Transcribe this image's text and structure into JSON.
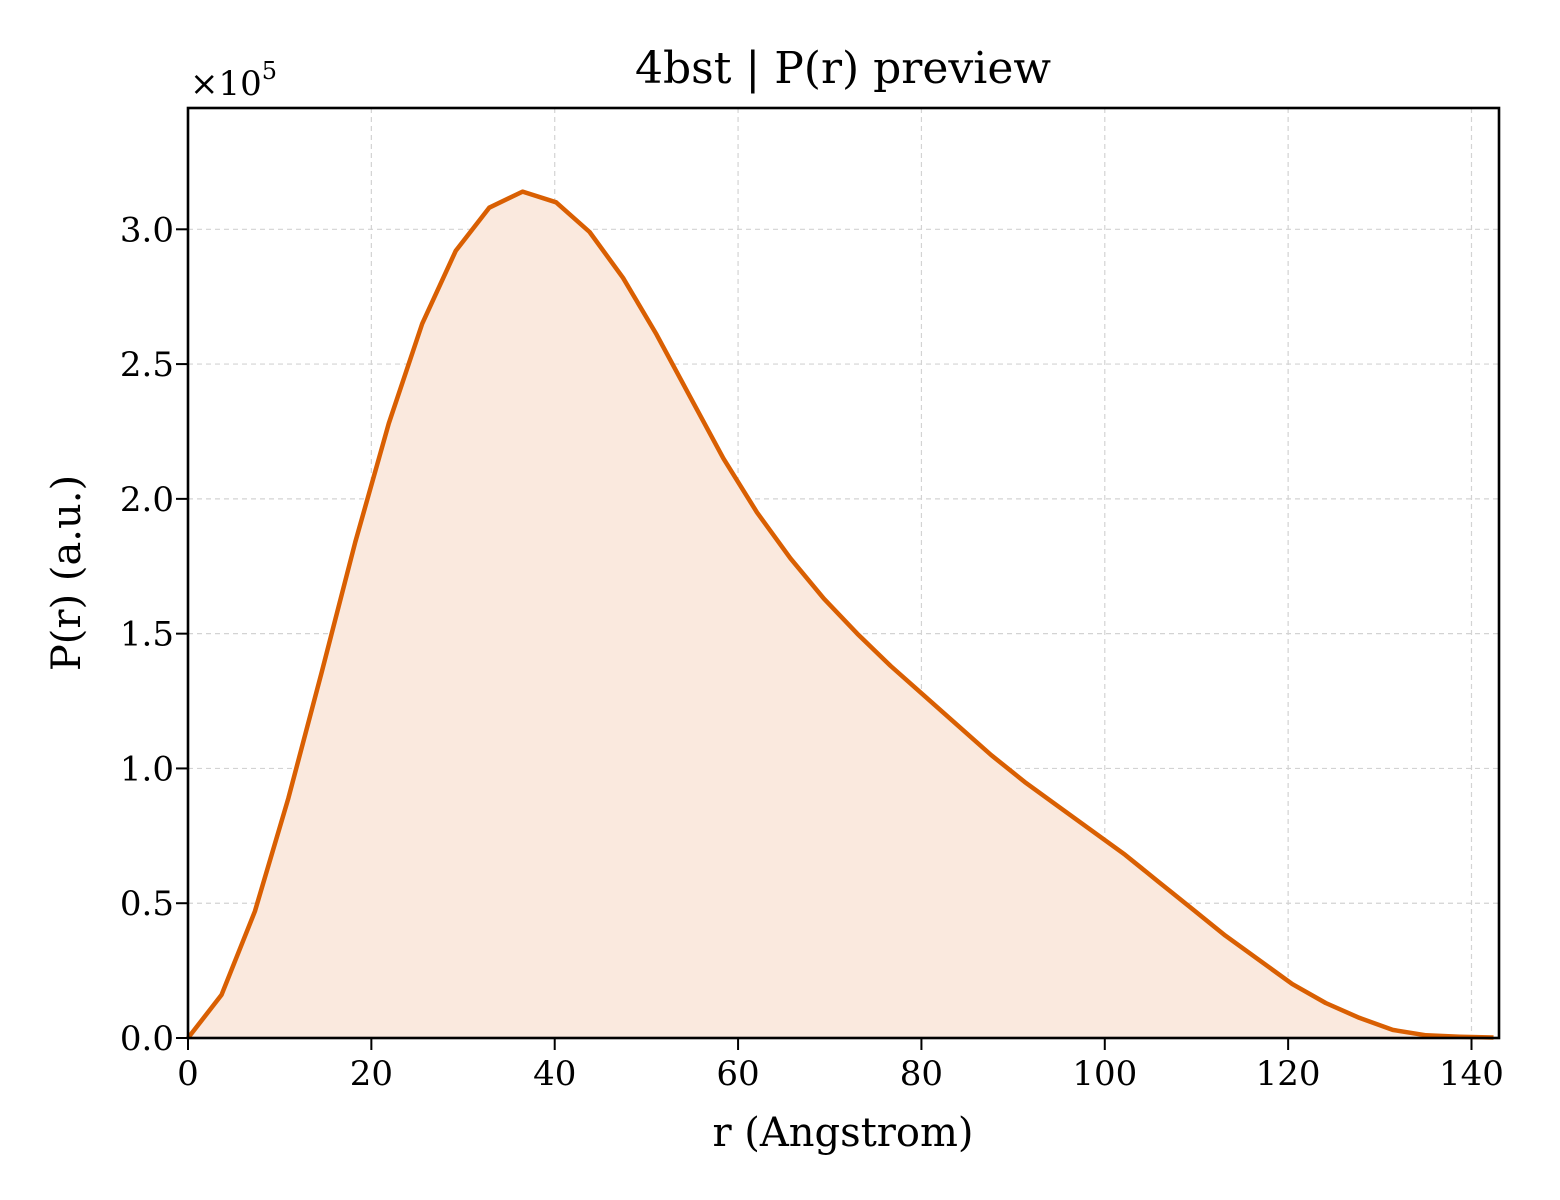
{
  "chart_data": {
    "type": "area",
    "title": "4bst | P(r) preview",
    "xlabel": "r (Angstrom)",
    "ylabel": "P(r) (a.u.)",
    "y_scale_label": "×10",
    "y_scale_exponent": "5",
    "xlim": [
      0,
      143
    ],
    "ylim": [
      0,
      3.45
    ],
    "grid": true,
    "x_ticks": [
      0,
      20,
      40,
      60,
      80,
      100,
      120,
      140
    ],
    "x_tick_labels": [
      "0",
      "20",
      "40",
      "60",
      "80",
      "100",
      "120",
      "140"
    ],
    "y_ticks": [
      0,
      0.5,
      1.0,
      1.5,
      2.0,
      2.5,
      3.0
    ],
    "y_tick_labels": [
      "0.0",
      "0.5",
      "1.0",
      "1.5",
      "2.0",
      "2.5",
      "3.0"
    ],
    "series": [
      {
        "color": "#d95f02",
        "fill_color": "#fae9de",
        "x": [
          0,
          3.65,
          7.3,
          10.95,
          14.6,
          18.25,
          21.9,
          25.55,
          29.2,
          32.85,
          36.5,
          40.15,
          43.8,
          47.45,
          51.1,
          54.75,
          58.4,
          62.05,
          65.7,
          69.35,
          73.0,
          76.65,
          80.3,
          83.95,
          87.6,
          91.25,
          94.9,
          98.55,
          102.2,
          105.85,
          109.5,
          113.15,
          116.8,
          120.45,
          124.1,
          127.75,
          131.4,
          135.05,
          138.7,
          142.4
        ],
        "y": [
          0,
          0.16,
          0.47,
          0.89,
          1.36,
          1.84,
          2.28,
          2.65,
          2.92,
          3.08,
          3.14,
          3.1,
          2.99,
          2.82,
          2.61,
          2.38,
          2.15,
          1.95,
          1.78,
          1.63,
          1.5,
          1.38,
          1.27,
          1.16,
          1.05,
          0.95,
          0.86,
          0.77,
          0.68,
          0.58,
          0.48,
          0.38,
          0.29,
          0.2,
          0.13,
          0.075,
          0.03,
          0.01,
          0.005,
          0.002
        ]
      }
    ]
  }
}
